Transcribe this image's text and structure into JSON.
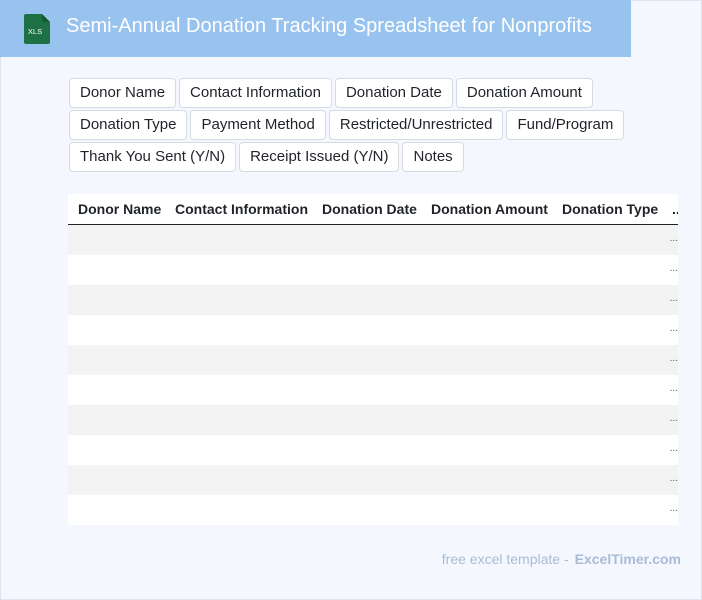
{
  "header": {
    "icon_label": "XLS",
    "title": "Semi-Annual Donation Tracking Spreadsheet for Nonprofits"
  },
  "chips": [
    [
      "Donor Name",
      "Contact Information",
      "Donation Date",
      "Donation Amount"
    ],
    [
      "Donation Type",
      "Payment Method",
      "Restricted/Unrestricted",
      "Fund/Program"
    ],
    [
      "Thank You Sent (Y/N)",
      "Receipt Issued (Y/N)",
      "Notes"
    ]
  ],
  "table": {
    "columns": [
      "Donor Name",
      "Contact Information",
      "Donation Date",
      "Donation Amount",
      "Donation Type",
      "..."
    ],
    "row_count": 10,
    "overflow_marker": "..."
  },
  "footer": {
    "prefix": "free excel template -",
    "brand": "ExcelTimer.com"
  },
  "colors": {
    "header_bg": "#99c3ef",
    "icon_green": "#1e7145",
    "page_bg": "#f4f8fe"
  }
}
